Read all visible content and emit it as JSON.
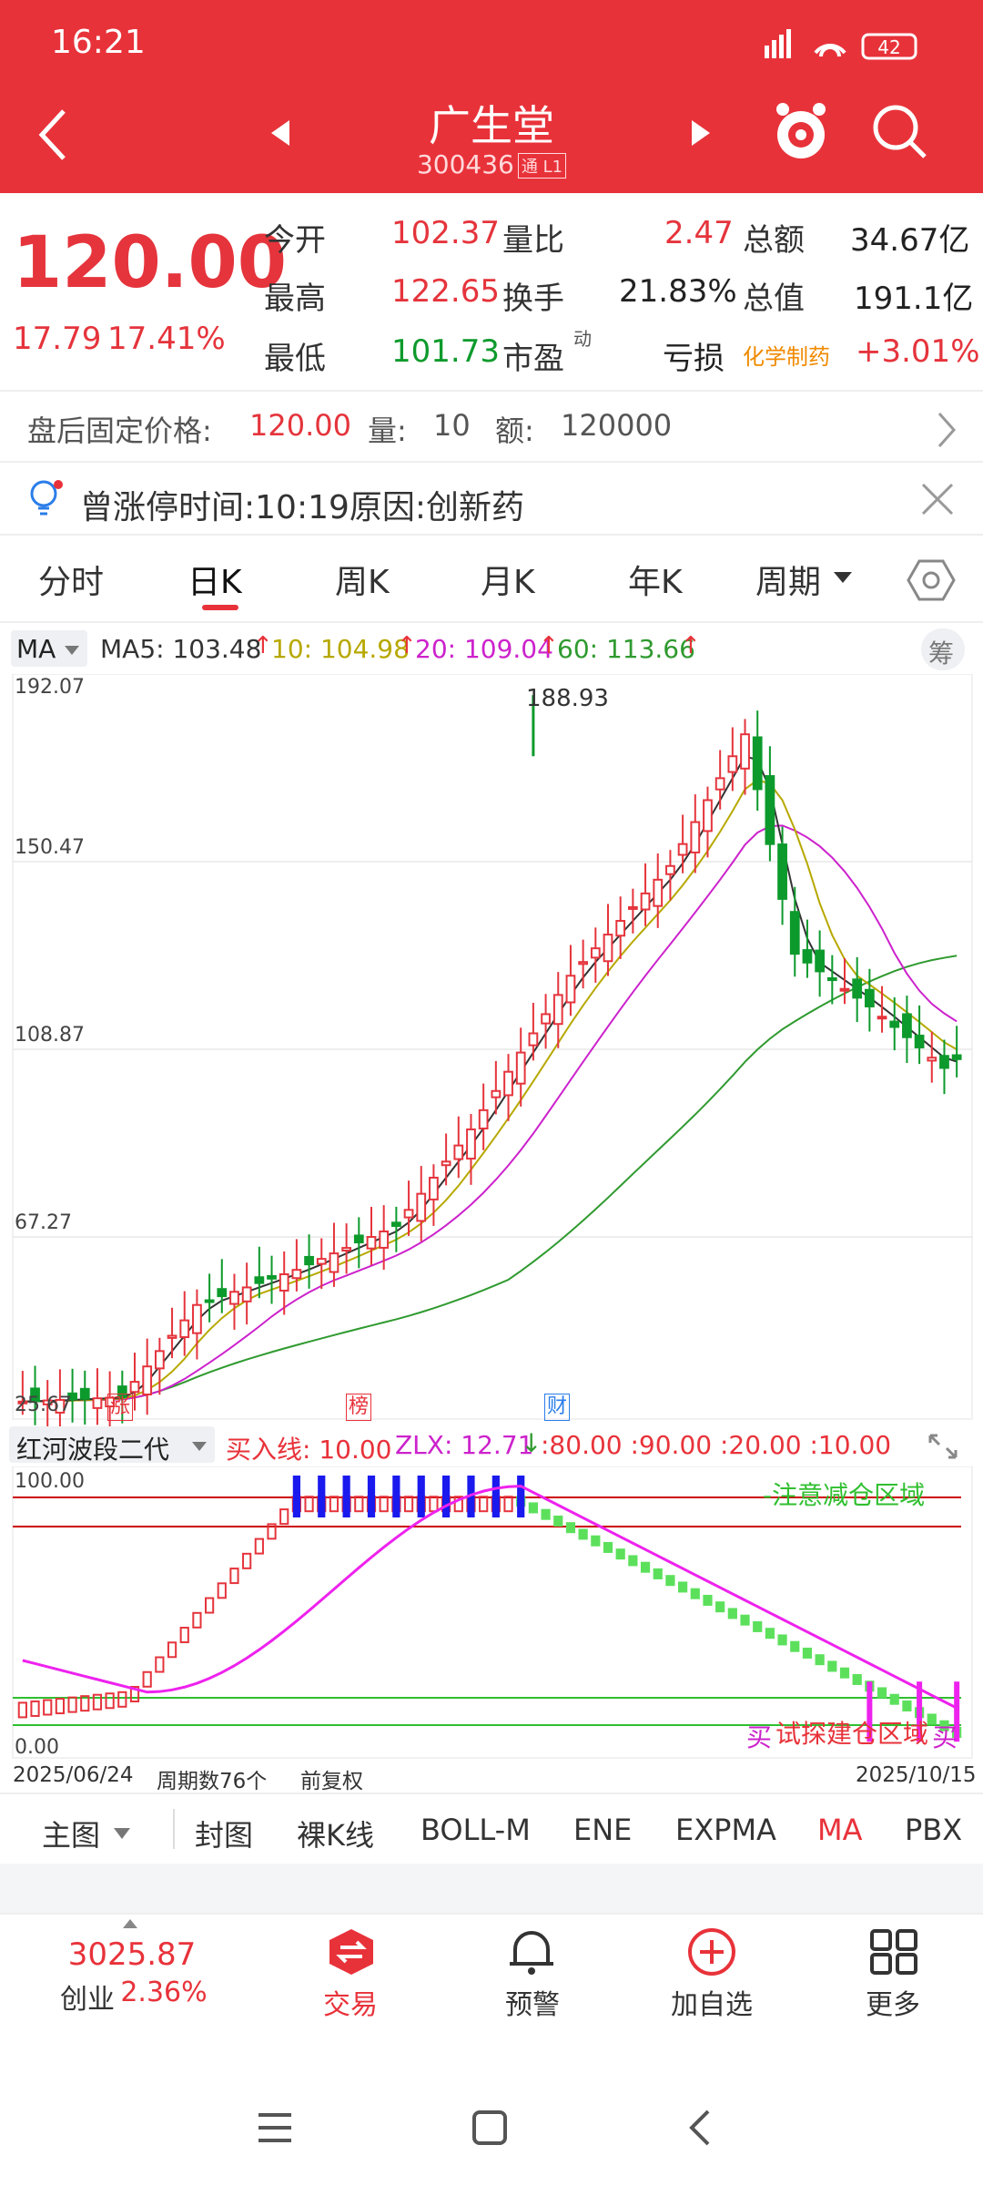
{
  "status": {
    "time": "16:21",
    "battery": "42"
  },
  "header": {
    "stock_name": "广生堂",
    "stock_code": "300436",
    "tag": "通 L1"
  },
  "quote": {
    "price": "120.00",
    "change": "17.79",
    "change_pct": "17.41%",
    "open_label": "今开",
    "open": "102.37",
    "high_label": "最高",
    "high": "122.65",
    "low_label": "最低",
    "low": "101.73",
    "vr_label": "量比",
    "vr": "2.47",
    "turn_label": "换手",
    "turn": "21.83%",
    "pe_label": "市盈",
    "pe_sup": "动",
    "pe": "亏损",
    "amount_label": "总额",
    "amount": "34.67亿",
    "mcap_label": "总值",
    "mcap": "191.1亿",
    "industry": "化学制药",
    "industry_pct": "+3.01%"
  },
  "after_hours": {
    "label": "盘后固定价格:",
    "price": "120.00",
    "vol_label": "量:",
    "vol": "10",
    "amt_label": "额:",
    "amt": "120000"
  },
  "notice": {
    "text": "曾涨停时间:10:19原因:创新药"
  },
  "tabs": [
    "分时",
    "日K",
    "周K",
    "月K",
    "年K",
    "周期"
  ],
  "ma_line": {
    "name": "MA",
    "ma5": "MA5: 103.48",
    "ma10": "10: 104.98",
    "ma20": "20: 109.04",
    "ma60": "60: 113.66",
    "chip": "筹"
  },
  "main_chart": {
    "max": "188.93",
    "y_ticks": [
      "192.07",
      "150.47",
      "108.87",
      "67.27",
      "25.67"
    ],
    "markers": [
      "涨",
      "榜",
      "财"
    ]
  },
  "indicator": {
    "name": "红河波段二代",
    "buy_line": "买入线: 10.00",
    "zlx": "ZLX: 12.71",
    "levels": ":80.00 :90.00 :20.00 :10.00",
    "top": "100.00",
    "bottom": "0.00",
    "warn": "-注意减仓区域",
    "buy_zone": "试探建仓区域",
    "buy_mark": "买"
  },
  "x_axis": {
    "start": "2025/06/24",
    "period": "周期数76个",
    "adjust": "前复权",
    "end": "2025/10/15"
  },
  "tools": [
    "主图",
    "封图",
    "裸K线",
    "BOLL-M",
    "ENE",
    "EXPMA",
    "MA",
    "PBX"
  ],
  "bottom": {
    "index_value": "3025.87",
    "index_name": "创业",
    "index_pct": "2.36%",
    "trade": "交易",
    "alert": "预警",
    "add": "加自选",
    "more": "更多"
  },
  "colors": {
    "red": "#e8323a",
    "green": "#0d9a2c"
  }
}
